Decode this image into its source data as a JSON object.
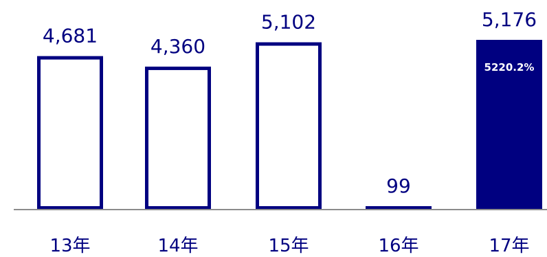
{
  "chart_data": {
    "type": "bar",
    "categories": [
      "13年",
      "14年",
      "15年",
      "16年",
      "17年"
    ],
    "values": [
      4681,
      4360,
      5102,
      99,
      5176
    ],
    "value_labels": [
      "4,681",
      "4,360",
      "5,102",
      "99",
      "5,176"
    ],
    "highlight_index": 4,
    "annotation": "5220.2%",
    "title": "",
    "xlabel": "",
    "ylabel": "",
    "ylim": [
      0,
      5176
    ],
    "grid": false,
    "colors": {
      "bar_outline": "#000080",
      "bar_fill": "#ffffff",
      "highlight_fill": "#000080",
      "baseline": "#8c8c8c",
      "text": "#000080",
      "annotation_text": "#ffffff"
    }
  }
}
